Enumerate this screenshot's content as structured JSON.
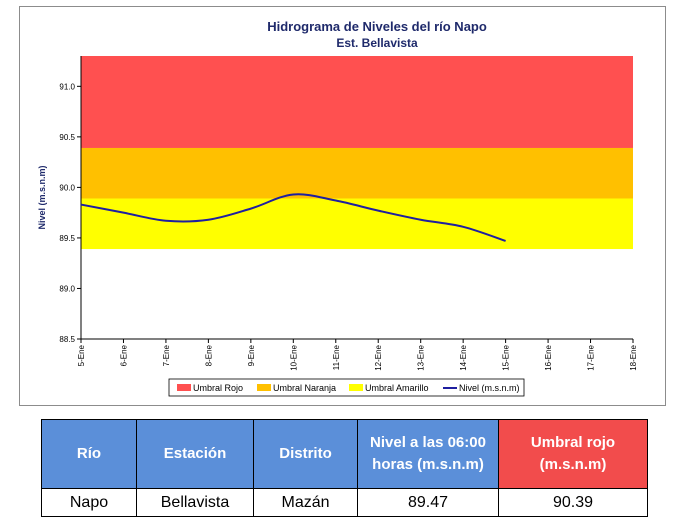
{
  "chart_data": {
    "type": "line",
    "title": "Hidrograma de Niveles del río Napo",
    "subtitle": "Est. Bellavista",
    "ylabel": "Nivel (m.s.n.m)",
    "xlabel": "",
    "ylim": [
      88.5,
      91.3
    ],
    "yticks": [
      "88.5",
      "89.0",
      "89.5",
      "90.0",
      "90.5",
      "91.0"
    ],
    "categories": [
      "5-Ene",
      "6-Ene",
      "7-Ene",
      "8-Ene",
      "9-Ene",
      "10-Ene",
      "11-Ene",
      "12-Ene",
      "13-Ene",
      "14-Ene",
      "15-Ene",
      "16-Ene",
      "17-Ene",
      "18-Ene"
    ],
    "bands": [
      {
        "name": "Umbral Rojo",
        "from": 90.39,
        "to": 91.3,
        "color": "#ff5050"
      },
      {
        "name": "Umbral Naranja",
        "from": 89.89,
        "to": 90.39,
        "color": "#ffc000"
      },
      {
        "name": "Umbral Amarillo",
        "from": 89.39,
        "to": 89.89,
        "color": "#ffff00"
      }
    ],
    "series": [
      {
        "name": "Nivel (m.s.n.m)",
        "color": "#1f1fa0",
        "values": [
          89.83,
          89.75,
          89.67,
          89.68,
          89.79,
          89.93,
          89.87,
          89.77,
          89.68,
          89.61,
          89.47,
          null,
          null,
          null
        ]
      }
    ],
    "legend_position": "bottom",
    "grid": false
  },
  "table": {
    "headers": [
      "Río",
      "Estación",
      "Distrito",
      "Nivel a las 06:00 horas (m.s.n.m)",
      "Umbral rojo (m.s.n.m)"
    ],
    "row": [
      "Napo",
      "Bellavista",
      "Mazán",
      "89.47",
      "90.39"
    ]
  }
}
